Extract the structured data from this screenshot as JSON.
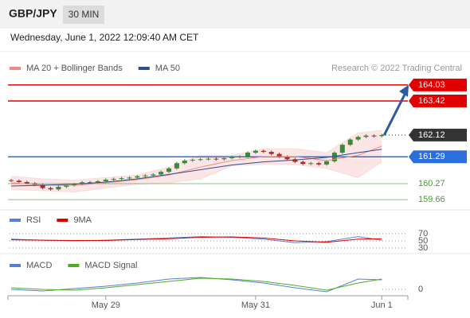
{
  "header": {
    "symbol": "GBP/JPY",
    "interval": "30 MIN"
  },
  "timestamp": "Wednesday, June 1, 2022 12:09:40 AM CET",
  "chart_data": [
    {
      "type": "candlestick",
      "credit": "Research © 2022 Trading Central",
      "categories": [
        null,
        null,
        null,
        null,
        null,
        null,
        null,
        null,
        null,
        null,
        null,
        null,
        "May 29",
        null,
        null,
        null,
        null,
        null,
        null,
        null,
        null,
        null,
        null,
        null,
        null,
        null,
        null,
        null,
        null,
        null,
        null,
        "May 31",
        null,
        null,
        null,
        null,
        null,
        null,
        null,
        null,
        null,
        null,
        null,
        null,
        null,
        null,
        null,
        "Jun 1"
      ],
      "open": [
        160.4,
        160.38,
        160.33,
        160.28,
        160.22,
        160.1,
        160.05,
        160.15,
        160.2,
        160.25,
        160.32,
        160.3,
        160.36,
        160.42,
        160.45,
        160.48,
        160.5,
        160.55,
        160.58,
        160.62,
        160.72,
        160.85,
        161.05,
        161.15,
        161.18,
        161.2,
        161.22,
        161.2,
        161.24,
        161.28,
        161.3,
        161.45,
        161.52,
        161.48,
        161.4,
        161.3,
        161.2,
        161.1,
        161.02,
        161.05,
        161.0,
        161.12,
        161.45,
        161.75,
        161.95,
        162.05,
        162.1,
        162.08
      ],
      "high": [
        160.45,
        160.43,
        160.38,
        160.33,
        160.27,
        160.15,
        160.2,
        160.25,
        160.3,
        160.37,
        160.37,
        160.41,
        160.47,
        160.5,
        160.53,
        160.55,
        160.6,
        160.63,
        160.67,
        160.77,
        160.9,
        161.1,
        161.2,
        161.23,
        161.25,
        161.27,
        161.27,
        161.29,
        161.33,
        161.35,
        161.5,
        161.57,
        161.57,
        161.53,
        161.45,
        161.35,
        161.25,
        161.15,
        161.1,
        161.1,
        161.17,
        161.5,
        161.8,
        162.0,
        162.1,
        162.15,
        162.15,
        162.17
      ],
      "low": [
        160.33,
        160.28,
        160.23,
        160.17,
        160.05,
        160.0,
        160.0,
        160.1,
        160.15,
        160.2,
        160.25,
        160.25,
        160.31,
        160.37,
        160.4,
        160.43,
        160.45,
        160.5,
        160.53,
        160.57,
        160.67,
        160.8,
        161.0,
        161.1,
        161.13,
        161.15,
        161.15,
        161.15,
        161.19,
        161.23,
        161.25,
        161.4,
        161.43,
        161.35,
        161.25,
        161.15,
        161.05,
        160.97,
        160.97,
        160.95,
        160.95,
        161.07,
        161.4,
        161.7,
        161.9,
        162.0,
        162.03,
        162.03
      ],
      "close": [
        160.38,
        160.33,
        160.28,
        160.22,
        160.1,
        160.05,
        160.15,
        160.2,
        160.25,
        160.32,
        160.3,
        160.36,
        160.42,
        160.45,
        160.48,
        160.5,
        160.55,
        160.58,
        160.62,
        160.72,
        160.85,
        161.05,
        161.15,
        161.18,
        161.2,
        161.22,
        161.2,
        161.24,
        161.28,
        161.3,
        161.45,
        161.52,
        161.48,
        161.4,
        161.3,
        161.2,
        161.1,
        161.02,
        161.05,
        161.0,
        161.12,
        161.45,
        161.75,
        161.95,
        162.05,
        162.1,
        162.08,
        162.12
      ],
      "up_color": "#3a8a3a",
      "down_color": "#a0302a",
      "overlays": [
        {
          "name": "MA 20 + Bollinger Bands",
          "color": "#f08a8a",
          "band_color": "#fbdada",
          "x": [
            0,
            4,
            8,
            12,
            16,
            20,
            24,
            28,
            32,
            36,
            40,
            44,
            47
          ],
          "values": [
            160.3,
            160.22,
            160.2,
            160.3,
            160.42,
            160.6,
            160.9,
            161.15,
            161.3,
            161.3,
            161.15,
            161.35,
            161.7
          ],
          "upper": [
            160.55,
            160.45,
            160.4,
            160.5,
            160.6,
            160.9,
            161.35,
            161.35,
            161.6,
            161.6,
            161.45,
            162.2,
            162.3
          ],
          "lower": [
            160.05,
            160.0,
            159.95,
            160.1,
            160.25,
            160.3,
            160.45,
            160.95,
            161.0,
            161.0,
            160.85,
            160.5,
            161.1
          ]
        },
        {
          "name": "MA 50",
          "color": "#2c4f8a",
          "x": [
            0,
            4,
            8,
            12,
            16,
            20,
            24,
            28,
            32,
            36,
            40,
            44,
            47
          ],
          "values": [
            160.18,
            160.21,
            160.25,
            160.33,
            160.45,
            160.62,
            160.8,
            160.98,
            161.1,
            161.17,
            161.27,
            161.45,
            161.58
          ]
        }
      ],
      "levels": [
        {
          "value": 164.03,
          "color": "#e00000",
          "line": "solid",
          "boxed": true
        },
        {
          "value": 163.42,
          "color": "#e00000",
          "line": "solid",
          "boxed": true
        },
        {
          "value": 162.12,
          "color": "#333333",
          "line": "dotted",
          "boxed": true
        },
        {
          "value": 161.29,
          "color": "#2a6fdb",
          "line": "solid",
          "boxed": true
        },
        {
          "value": 160.27,
          "color": "#4a9a3a",
          "line": "solid",
          "boxed": false
        },
        {
          "value": 159.66,
          "color": "#4a9a3a",
          "line": "solid",
          "boxed": false
        }
      ],
      "ylim": [
        159.33,
        164.39
      ]
    },
    {
      "type": "line",
      "x": [
        0,
        4,
        8,
        12,
        16,
        20,
        24,
        28,
        32,
        36,
        40,
        44,
        47
      ],
      "series": [
        {
          "name": "RSI",
          "color": "#5b7fd6",
          "values": [
            55,
            52,
            50,
            52,
            55,
            58,
            62,
            60,
            55,
            45,
            48,
            62,
            52
          ]
        },
        {
          "name": "9MA",
          "color": "#e00000",
          "values": [
            53,
            52,
            51,
            51,
            54,
            56,
            60,
            61,
            58,
            50,
            46,
            55,
            56
          ]
        }
      ],
      "ylim": [
        25,
        80
      ],
      "yticks": [
        30,
        50,
        70
      ]
    },
    {
      "type": "line",
      "x": [
        0,
        4,
        8,
        12,
        16,
        20,
        24,
        28,
        32,
        36,
        40,
        44,
        47
      ],
      "series": [
        {
          "name": "MACD",
          "color": "#5b7fd6",
          "values": [
            0.0,
            -0.02,
            0.01,
            0.04,
            0.08,
            0.13,
            0.15,
            0.12,
            0.08,
            0.02,
            -0.03,
            0.13,
            0.12
          ]
        },
        {
          "name": "MACD Signal",
          "color": "#4caf20",
          "values": [
            0.02,
            0.0,
            -0.01,
            0.02,
            0.06,
            0.1,
            0.14,
            0.13,
            0.1,
            0.05,
            -0.01,
            0.08,
            0.13
          ]
        }
      ],
      "ylim": [
        -0.08,
        0.24
      ],
      "yticks": [
        0
      ]
    }
  ]
}
